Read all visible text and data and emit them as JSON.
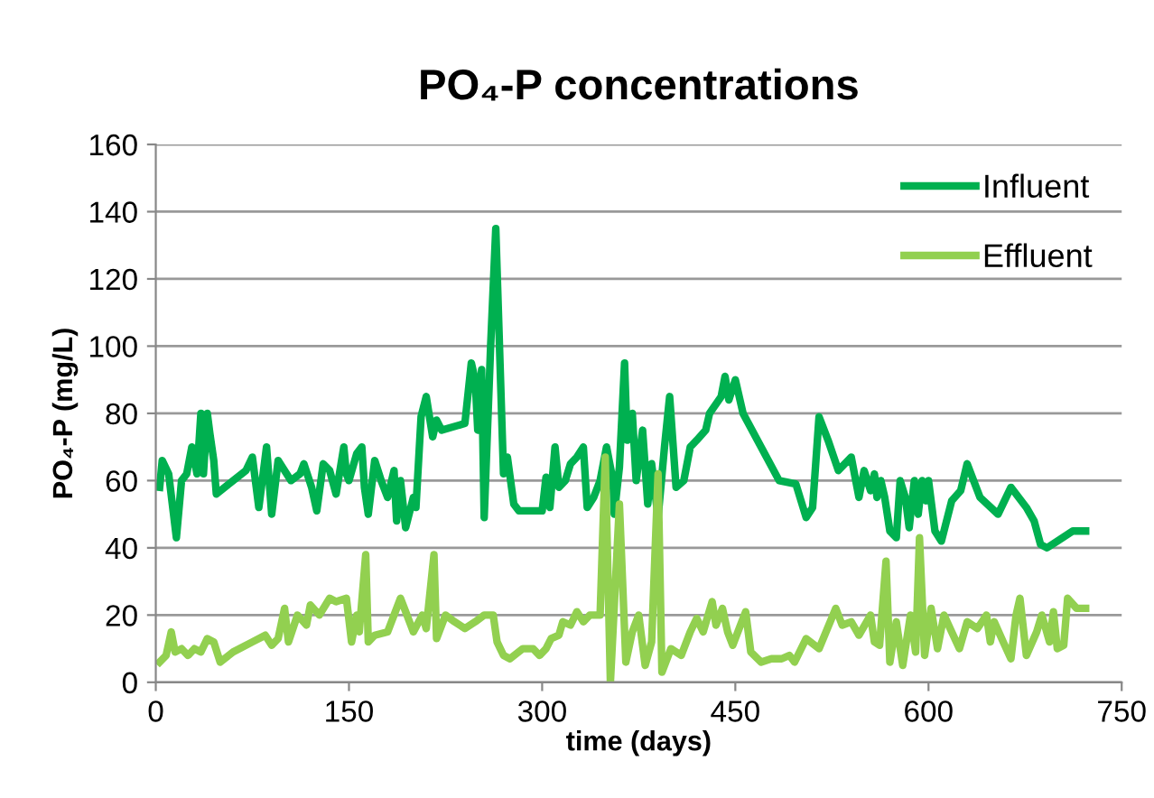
{
  "chart_data": {
    "type": "line",
    "title": "PO₄-P concentrations",
    "xlabel": "time (days)",
    "ylabel": "PO₄-P (mg/L)",
    "xlim": [
      0,
      750
    ],
    "xticks": [
      0,
      150,
      300,
      450,
      600,
      750
    ],
    "ylim": [
      0,
      160
    ],
    "yticks": [
      0,
      20,
      40,
      60,
      80,
      100,
      120,
      140,
      160
    ],
    "grid": "y",
    "legend": "top right",
    "marker": "none",
    "line_style": "solid",
    "series": [
      {
        "name": "Influent",
        "color": "#00b050",
        "x": [
          3,
          5,
          10,
          16,
          20,
          24,
          28,
          32,
          35,
          37,
          40,
          42,
          45,
          47,
          60,
          70,
          75,
          80,
          86,
          90,
          95,
          105,
          112,
          115,
          121,
          125,
          130,
          135,
          140,
          146,
          148,
          150,
          156,
          160,
          162,
          165,
          170,
          175,
          180,
          185,
          187,
          190,
          194,
          200,
          202,
          206,
          210,
          215,
          218,
          222,
          240,
          245,
          248,
          250,
          253,
          255,
          260,
          264,
          270,
          273,
          278,
          282,
          300,
          303,
          306,
          310,
          313,
          318,
          322,
          327,
          332,
          335,
          340,
          345,
          350,
          355,
          356,
          360,
          364,
          366,
          370,
          373,
          378,
          382,
          385,
          390,
          395,
          399,
          404,
          410,
          415,
          420,
          427,
          430,
          439,
          442,
          445,
          450,
          456,
          484,
          497,
          505,
          510,
          515,
          522,
          530,
          540,
          546,
          550,
          555,
          558,
          560,
          563,
          566,
          570,
          575,
          578,
          582,
          585,
          589,
          592,
          595,
          598,
          600,
          605,
          610,
          618,
          625,
          630,
          640,
          654,
          664,
          676,
          682,
          687,
          692,
          700,
          712,
          722
        ],
        "values": [
          58,
          66,
          62,
          43,
          60,
          62,
          70,
          62,
          80,
          62,
          80,
          74,
          66,
          56,
          60,
          63,
          67,
          52,
          70,
          50,
          66,
          60,
          62,
          65,
          58,
          51,
          65,
          63,
          56,
          70,
          62,
          60,
          68,
          70,
          58,
          50,
          66,
          60,
          55,
          63,
          48,
          60,
          46,
          55,
          52,
          79,
          85,
          73,
          78,
          75,
          77,
          95,
          90,
          75,
          93,
          49,
          100,
          135,
          62,
          67,
          53,
          51,
          51,
          61,
          52,
          70,
          58,
          60,
          65,
          67,
          70,
          52,
          55,
          60,
          70,
          60,
          50,
          64,
          95,
          72,
          80,
          60,
          75,
          53,
          65,
          49,
          70,
          85,
          58,
          60,
          70,
          72,
          75,
          80,
          85,
          91,
          84,
          90,
          80,
          60,
          59,
          49,
          52,
          79,
          72,
          63,
          67,
          55,
          63,
          57,
          62,
          55,
          60,
          55,
          45,
          43,
          60,
          55,
          46,
          60,
          50,
          60,
          54,
          60,
          45,
          42,
          54,
          57,
          65,
          55,
          50,
          58,
          52,
          48,
          41,
          40,
          42,
          45,
          45
        ]
      },
      {
        "name": "Effluent",
        "color": "#92d050",
        "x": [
          3,
          8,
          12,
          15,
          20,
          25,
          30,
          35,
          40,
          45,
          50,
          60,
          75,
          85,
          90,
          95,
          100,
          103,
          110,
          117,
          120,
          127,
          135,
          140,
          148,
          152,
          156,
          158,
          163,
          165,
          170,
          180,
          190,
          195,
          200,
          207,
          210,
          216,
          218,
          225,
          232,
          240,
          248,
          255,
          262,
          265,
          270,
          275,
          285,
          293,
          298,
          303,
          307,
          313,
          316,
          322,
          327,
          332,
          337,
          345,
          349,
          353,
          360,
          365,
          370,
          375,
          380,
          385,
          390,
          393,
          400,
          408,
          415,
          420,
          425,
          432,
          435,
          440,
          444,
          448,
          455,
          458,
          462,
          470,
          478,
          486,
          492,
          496,
          505,
          515,
          528,
          533,
          540,
          546,
          555,
          558,
          562,
          567,
          570,
          575,
          580,
          586,
          590,
          593,
          597,
          602,
          607,
          612,
          618,
          624,
          630,
          638,
          645,
          648,
          651,
          658,
          664,
          668,
          671,
          676,
          684,
          688,
          694,
          697,
          700,
          705,
          708,
          715,
          722
        ],
        "values": [
          6,
          8,
          15,
          9,
          10,
          8,
          10,
          9,
          13,
          12,
          6,
          9,
          12,
          14,
          11,
          13,
          22,
          12,
          20,
          17,
          23,
          20,
          25,
          24,
          25,
          12,
          20,
          15,
          38,
          12,
          14,
          15,
          25,
          20,
          15,
          20,
          16,
          38,
          13,
          20,
          18,
          16,
          18,
          20,
          20,
          12,
          8,
          7,
          10,
          10,
          8,
          10,
          13,
          14,
          18,
          17,
          21,
          18,
          20,
          20,
          67,
          0,
          53,
          6,
          15,
          20,
          5,
          12,
          62,
          3,
          10,
          8,
          15,
          19,
          15,
          24,
          17,
          22,
          15,
          11,
          18,
          21,
          9,
          6,
          7,
          7,
          8,
          6,
          13,
          10,
          22,
          17,
          18,
          14,
          20,
          12,
          11,
          36,
          6,
          18,
          5,
          20,
          9,
          43,
          8,
          22,
          10,
          20,
          15,
          10,
          18,
          16,
          20,
          12,
          18,
          12,
          7,
          20,
          25,
          8,
          15,
          20,
          12,
          21,
          10,
          11,
          25,
          22,
          22
        ]
      }
    ]
  }
}
